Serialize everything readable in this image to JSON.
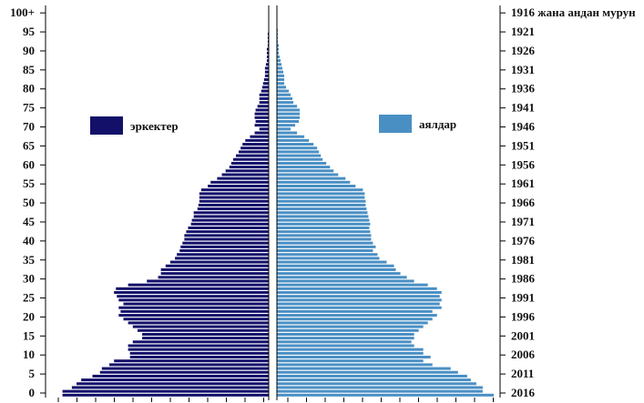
{
  "chart_data": {
    "type": "bar",
    "subtype": "population-pyramid",
    "title": "",
    "legend": [
      {
        "key": "male",
        "label": "эркектер",
        "color": "#13106a"
      },
      {
        "key": "female",
        "label": "аялдар",
        "color": "#4a8fc4"
      }
    ],
    "age_ticks": [
      "0",
      "5",
      "10",
      "15",
      "20",
      "25",
      "30",
      "35",
      "40",
      "45",
      "50",
      "55",
      "60",
      "65",
      "70",
      "75",
      "80",
      "85",
      "90",
      "95",
      "100+"
    ],
    "year_ticks": [
      "2016",
      "2011",
      "2006",
      "2001",
      "1996",
      "1991",
      "1986",
      "1981",
      "1976",
      "1971",
      "1966",
      "1961",
      "1956",
      "1951",
      "1946",
      "1941",
      "1936",
      "1931",
      "1926",
      "1921",
      "1916 жана андан мурун"
    ],
    "ages": [
      "0",
      "1",
      "2",
      "3",
      "4",
      "5",
      "6",
      "7",
      "8",
      "9",
      "10",
      "11",
      "12",
      "13",
      "14",
      "15",
      "16",
      "17",
      "18",
      "19",
      "20",
      "21",
      "22",
      "23",
      "24",
      "25",
      "26",
      "27",
      "28",
      "29",
      "30",
      "31",
      "32",
      "33",
      "34",
      "35",
      "36",
      "37",
      "38",
      "39",
      "40",
      "41",
      "42",
      "43",
      "44",
      "45",
      "46",
      "47",
      "48",
      "49",
      "50",
      "51",
      "52",
      "53",
      "54",
      "55",
      "56",
      "57",
      "58",
      "59",
      "60",
      "61",
      "62",
      "63",
      "64",
      "65",
      "66",
      "67",
      "68",
      "69",
      "70",
      "71",
      "72",
      "73",
      "74",
      "75",
      "76",
      "77",
      "78",
      "79",
      "80",
      "81",
      "82",
      "83",
      "84",
      "85",
      "86",
      "87",
      "88",
      "89",
      "90",
      "91",
      "92",
      "93",
      "94",
      "95",
      "96",
      "97",
      "98",
      "99",
      "100+"
    ],
    "male": [
      220,
      220,
      210,
      205,
      200,
      188,
      180,
      178,
      170,
      165,
      148,
      148,
      150,
      150,
      145,
      135,
      135,
      140,
      145,
      150,
      155,
      160,
      158,
      160,
      155,
      160,
      162,
      165,
      163,
      150,
      130,
      118,
      115,
      115,
      110,
      105,
      100,
      98,
      95,
      94,
      92,
      90,
      90,
      88,
      86,
      83,
      82,
      80,
      80,
      76,
      75,
      74,
      74,
      74,
      72,
      65,
      62,
      55,
      50,
      46,
      42,
      40,
      38,
      35,
      32,
      30,
      28,
      25,
      20,
      15,
      10,
      15,
      14,
      15,
      15,
      14,
      12,
      10,
      10,
      10,
      8,
      7,
      6,
      5,
      4,
      4,
      4,
      3,
      2,
      2,
      2,
      2,
      1,
      1,
      1,
      1,
      0,
      0,
      0,
      0,
      0
    ],
    "female": [
      237,
      225,
      225,
      218,
      212,
      208,
      198,
      190,
      170,
      160,
      168,
      160,
      160,
      150,
      147,
      150,
      150,
      155,
      160,
      165,
      170,
      175,
      170,
      180,
      178,
      180,
      178,
      180,
      175,
      165,
      150,
      142,
      135,
      130,
      128,
      120,
      112,
      110,
      105,
      108,
      105,
      103,
      103,
      102,
      101,
      102,
      101,
      100,
      99,
      98,
      97,
      97,
      96,
      96,
      94,
      86,
      80,
      75,
      67,
      62,
      58,
      54,
      50,
      48,
      46,
      44,
      40,
      35,
      30,
      22,
      15,
      20,
      24,
      25,
      25,
      25,
      22,
      18,
      17,
      15,
      13,
      10,
      8,
      8,
      8,
      7,
      6,
      5,
      4,
      3,
      2,
      2,
      2,
      1,
      1,
      1,
      1,
      0,
      0,
      0,
      0
    ],
    "xlim": [
      0,
      240
    ],
    "ylim": [
      0,
      100
    ]
  }
}
